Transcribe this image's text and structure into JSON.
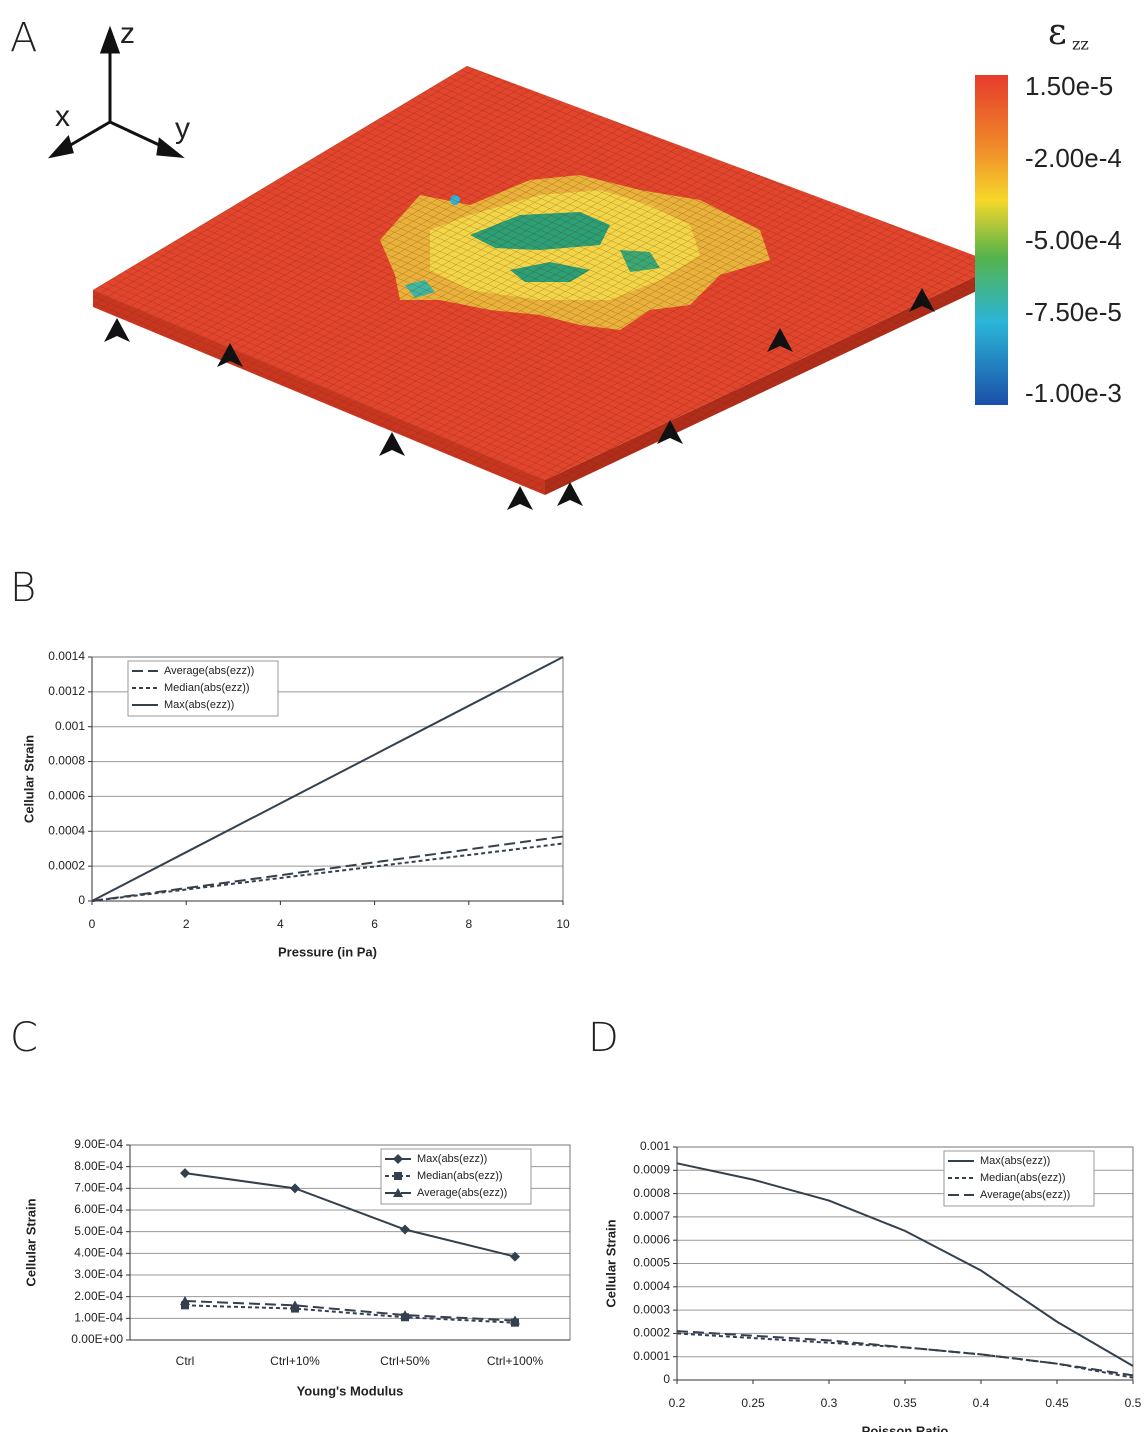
{
  "panel_a": {
    "label": "A",
    "axis_labels": [
      "x",
      "y",
      "z"
    ],
    "colorbar_title": "ε",
    "colorbar_subscript": "zz",
    "colorbar_labels": [
      "1.50e-5",
      "-2.00e-4",
      "-5.00e-4",
      "-7.50e-5",
      "-1.00e-3"
    ]
  },
  "chart_data": [
    {
      "type": "line",
      "panel_label": "B",
      "x_label": "Pressure (in Pa)",
      "y_label": "Cellular Strain",
      "x": [
        0,
        2,
        4,
        6,
        8,
        10
      ],
      "xlim": [
        0,
        10
      ],
      "xticks": [
        0,
        2,
        4,
        6,
        8,
        10
      ],
      "ylim": [
        0,
        0.0014
      ],
      "yticks": [
        0,
        0.0002,
        0.0004,
        0.0006,
        0.0008,
        0.001,
        0.0012,
        0.0014
      ],
      "grid": true,
      "legend": "upper-left",
      "series": [
        {
          "name": "Average(abs(ezz))",
          "color": "#33404e",
          "dash": "dashed",
          "values": [
            0,
            7.4e-05,
            0.000148,
            0.000222,
            0.000296,
            0.00037
          ]
        },
        {
          "name": "Median(abs(ezz))",
          "color": "#33404e",
          "dash": "dotted",
          "values": [
            0,
            6.6e-05,
            0.000132,
            0.000198,
            0.000264,
            0.00033
          ]
        },
        {
          "name": "Max(abs(ezz))",
          "color": "#33404e",
          "dash": "solid",
          "values": [
            0,
            0.00028,
            0.00056,
            0.00084,
            0.00112,
            0.0014
          ]
        }
      ]
    },
    {
      "type": "line",
      "panel_label": "C",
      "x_label": "Young's Modulus",
      "y_label": "Cellular Strain",
      "categories": [
        "Ctrl",
        "Ctrl+10%",
        "Ctrl+50%",
        "Ctrl+100%"
      ],
      "ylim": [
        0,
        0.0009
      ],
      "yticks": [
        {
          "value": 0,
          "label": "0.00E+00"
        },
        {
          "value": 0.0001,
          "label": "1.00E-04"
        },
        {
          "value": 0.0002,
          "label": "2.00E-04"
        },
        {
          "value": 0.0003,
          "label": "3.00E-04"
        },
        {
          "value": 0.0004,
          "label": "4.00E-04"
        },
        {
          "value": 0.0005,
          "label": "5.00E-04"
        },
        {
          "value": 0.0006,
          "label": "6.00E-04"
        },
        {
          "value": 0.0007,
          "label": "7.00E-04"
        },
        {
          "value": 0.0008,
          "label": "8.00E-04"
        },
        {
          "value": 0.0009,
          "label": "9.00E-04"
        }
      ],
      "grid": true,
      "legend": "upper-right",
      "series": [
        {
          "name": "Max(abs(ezz))",
          "color": "#33404e",
          "dash": "solid",
          "marker": "diamond",
          "values": [
            0.00077,
            0.0007,
            0.00051,
            0.000385
          ]
        },
        {
          "name": "Median(abs(ezz))",
          "color": "#33404e",
          "dash": "dotted",
          "marker": "square",
          "values": [
            0.00016,
            0.000145,
            0.000105,
            8e-05
          ]
        },
        {
          "name": "Average(abs(ezz))",
          "color": "#33404e",
          "dash": "dashed",
          "marker": "triangle",
          "values": [
            0.00018,
            0.00016,
            0.000115,
            9e-05
          ]
        }
      ]
    },
    {
      "type": "line",
      "panel_label": "D",
      "x_label": "Poisson Ratio",
      "y_label": "Cellular Strain",
      "x": [
        0.2,
        0.25,
        0.3,
        0.35,
        0.4,
        0.45,
        0.5
      ],
      "xlim": [
        0.2,
        0.5
      ],
      "xticks": [
        0.2,
        0.25,
        0.3,
        0.35,
        0.4,
        0.45,
        0.5
      ],
      "ylim": [
        0,
        0.001
      ],
      "yticks": [
        0,
        0.0001,
        0.0002,
        0.0003,
        0.0004,
        0.0005,
        0.0006,
        0.0007,
        0.0008,
        0.0009,
        0.001
      ],
      "grid": true,
      "legend": "upper-right",
      "series": [
        {
          "name": "Max(abs(ezz))",
          "color": "#33404e",
          "dash": "solid",
          "values": [
            0.00093,
            0.00086,
            0.00077,
            0.00064,
            0.00047,
            0.00025,
            6e-05
          ]
        },
        {
          "name": "Median(abs(ezz))",
          "color": "#33404e",
          "dash": "dotted",
          "values": [
            0.0002,
            0.00018,
            0.00016,
            0.00014,
            0.00011,
            7e-05,
            1e-05
          ]
        },
        {
          "name": "Average(abs(ezz))",
          "color": "#33404e",
          "dash": "dashed",
          "values": [
            0.00021,
            0.00019,
            0.00017,
            0.00014,
            0.00011,
            7e-05,
            2e-05
          ]
        }
      ]
    }
  ]
}
